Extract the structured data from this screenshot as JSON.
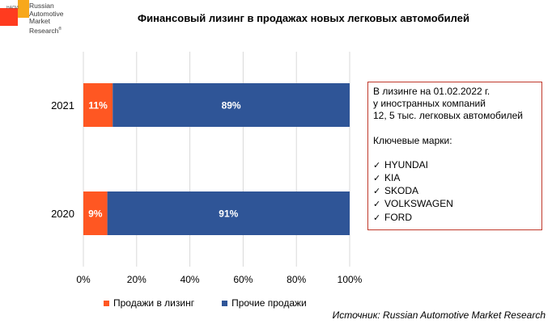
{
  "logo": {
    "small_text": "НАПИ",
    "lines": [
      "Russian",
      "Automotive",
      "Market",
      "Research"
    ],
    "reg": "®",
    "colors": {
      "red": "#ff3b1f",
      "orange": "#f7a81b"
    }
  },
  "chart_data": {
    "type": "bar",
    "orientation": "horizontal",
    "stacked": true,
    "title": "Финансовый лизинг в продажах новых легковых автомобилей",
    "categories": [
      "2021",
      "2020"
    ],
    "series": [
      {
        "name": "Продажи в лизинг",
        "values": [
          11,
          9
        ],
        "color": "#ff5722",
        "labels": [
          "11%",
          "9%"
        ]
      },
      {
        "name": "Прочие продажи",
        "values": [
          89,
          91
        ],
        "color": "#2f5597",
        "labels": [
          "89%",
          "91%"
        ]
      }
    ],
    "xlim": [
      0,
      100
    ],
    "xticks": [
      "0%",
      "20%",
      "40%",
      "60%",
      "80%",
      "100%"
    ],
    "grid": "vertical",
    "legend_position": "bottom"
  },
  "info_box": {
    "lines": [
      "В лизинге на 01.02.2022 г.",
      "у иностранных компаний",
      "12, 5 тыс. легковых автомобилей"
    ],
    "brands_heading": "Ключевые марки:",
    "check": "✓",
    "brands": [
      "HYUNDAI",
      "KIA",
      "SKODA",
      "VOLKSWAGEN",
      "FORD"
    ]
  },
  "source": "Источник: Russian Automotive Market Research"
}
